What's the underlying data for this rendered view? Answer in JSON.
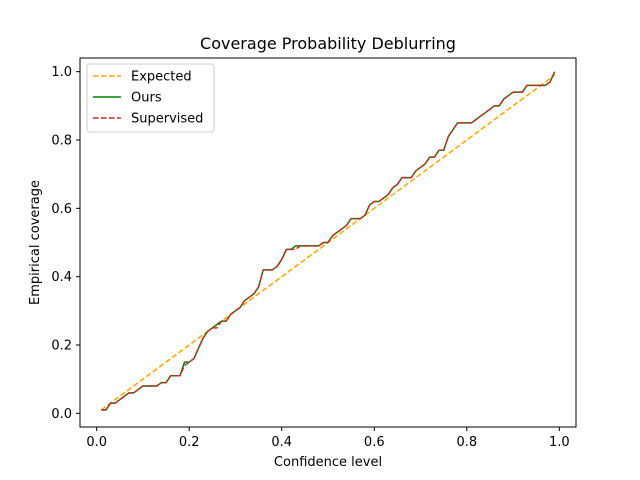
{
  "chart_data": {
    "type": "line",
    "title": "Coverage Probability Deblurring",
    "xlabel": "Confidence level",
    "ylabel": "Empirical coverage",
    "xlim": [
      -0.036,
      1.036
    ],
    "ylim": [
      -0.04,
      1.04
    ],
    "xticks": [
      "0.0",
      "0.2",
      "0.4",
      "0.6",
      "0.8",
      "1.0"
    ],
    "yticks": [
      "0.0",
      "0.2",
      "0.4",
      "0.6",
      "0.8",
      "1.0"
    ],
    "grid": false,
    "legend_position": "top-left",
    "series": [
      {
        "name": "Expected",
        "style": "dashed",
        "color": "#ffa500",
        "x": [
          0.01,
          0.99
        ],
        "y": [
          0.01,
          0.99
        ]
      },
      {
        "name": "Ours",
        "style": "solid",
        "color": "#008000",
        "x": [
          0.01,
          0.02,
          0.03,
          0.04,
          0.05,
          0.06,
          0.07,
          0.08,
          0.09,
          0.1,
          0.11,
          0.12,
          0.13,
          0.14,
          0.15,
          0.16,
          0.17,
          0.18,
          0.19,
          0.2,
          0.21,
          0.22,
          0.23,
          0.24,
          0.25,
          0.26,
          0.27,
          0.28,
          0.29,
          0.3,
          0.31,
          0.32,
          0.33,
          0.34,
          0.35,
          0.36,
          0.37,
          0.38,
          0.39,
          0.4,
          0.41,
          0.42,
          0.43,
          0.44,
          0.45,
          0.46,
          0.47,
          0.48,
          0.49,
          0.5,
          0.51,
          0.52,
          0.53,
          0.54,
          0.55,
          0.56,
          0.57,
          0.58,
          0.59,
          0.6,
          0.61,
          0.62,
          0.63,
          0.64,
          0.65,
          0.66,
          0.67,
          0.68,
          0.69,
          0.7,
          0.71,
          0.72,
          0.73,
          0.74,
          0.75,
          0.76,
          0.77,
          0.78,
          0.79,
          0.8,
          0.81,
          0.82,
          0.83,
          0.84,
          0.85,
          0.86,
          0.87,
          0.88,
          0.89,
          0.9,
          0.91,
          0.92,
          0.93,
          0.94,
          0.95,
          0.96,
          0.97,
          0.98,
          0.99
        ],
        "y": [
          0.01,
          0.01,
          0.03,
          0.03,
          0.04,
          0.05,
          0.06,
          0.06,
          0.07,
          0.08,
          0.08,
          0.08,
          0.08,
          0.09,
          0.09,
          0.11,
          0.11,
          0.11,
          0.15,
          0.15,
          0.16,
          0.19,
          0.22,
          0.24,
          0.25,
          0.26,
          0.27,
          0.27,
          0.29,
          0.3,
          0.31,
          0.33,
          0.34,
          0.35,
          0.37,
          0.42,
          0.42,
          0.42,
          0.43,
          0.45,
          0.48,
          0.48,
          0.49,
          0.49,
          0.49,
          0.49,
          0.49,
          0.49,
          0.5,
          0.5,
          0.52,
          0.53,
          0.54,
          0.55,
          0.57,
          0.57,
          0.57,
          0.58,
          0.61,
          0.62,
          0.62,
          0.63,
          0.64,
          0.66,
          0.67,
          0.69,
          0.69,
          0.69,
          0.71,
          0.72,
          0.73,
          0.75,
          0.75,
          0.77,
          0.77,
          0.81,
          0.83,
          0.85,
          0.85,
          0.85,
          0.85,
          0.86,
          0.87,
          0.88,
          0.89,
          0.9,
          0.9,
          0.92,
          0.93,
          0.94,
          0.94,
          0.94,
          0.96,
          0.96,
          0.96,
          0.96,
          0.96,
          0.97,
          1.0
        ]
      },
      {
        "name": "Supervised",
        "style": "dashed",
        "color": "#d62728",
        "x": [
          0.01,
          0.02,
          0.03,
          0.04,
          0.05,
          0.06,
          0.07,
          0.08,
          0.09,
          0.1,
          0.11,
          0.12,
          0.13,
          0.14,
          0.15,
          0.16,
          0.17,
          0.18,
          0.19,
          0.2,
          0.21,
          0.22,
          0.23,
          0.24,
          0.25,
          0.26,
          0.27,
          0.28,
          0.29,
          0.3,
          0.31,
          0.32,
          0.33,
          0.34,
          0.35,
          0.36,
          0.37,
          0.38,
          0.39,
          0.4,
          0.41,
          0.42,
          0.43,
          0.44,
          0.45,
          0.46,
          0.47,
          0.48,
          0.49,
          0.5,
          0.51,
          0.52,
          0.53,
          0.54,
          0.55,
          0.56,
          0.57,
          0.58,
          0.59,
          0.6,
          0.61,
          0.62,
          0.63,
          0.64,
          0.65,
          0.66,
          0.67,
          0.68,
          0.69,
          0.7,
          0.71,
          0.72,
          0.73,
          0.74,
          0.75,
          0.76,
          0.77,
          0.78,
          0.79,
          0.8,
          0.81,
          0.82,
          0.83,
          0.84,
          0.85,
          0.86,
          0.87,
          0.88,
          0.89,
          0.9,
          0.91,
          0.92,
          0.93,
          0.94,
          0.95,
          0.96,
          0.97,
          0.98,
          0.99
        ],
        "y": [
          0.01,
          0.01,
          0.03,
          0.03,
          0.04,
          0.05,
          0.06,
          0.06,
          0.07,
          0.08,
          0.08,
          0.08,
          0.08,
          0.09,
          0.09,
          0.11,
          0.11,
          0.11,
          0.14,
          0.15,
          0.16,
          0.19,
          0.22,
          0.24,
          0.25,
          0.25,
          0.27,
          0.27,
          0.29,
          0.3,
          0.31,
          0.33,
          0.34,
          0.35,
          0.37,
          0.42,
          0.42,
          0.42,
          0.43,
          0.45,
          0.48,
          0.48,
          0.48,
          0.49,
          0.49,
          0.49,
          0.49,
          0.49,
          0.5,
          0.5,
          0.52,
          0.53,
          0.54,
          0.55,
          0.57,
          0.57,
          0.57,
          0.58,
          0.61,
          0.62,
          0.62,
          0.63,
          0.64,
          0.66,
          0.67,
          0.69,
          0.69,
          0.69,
          0.71,
          0.72,
          0.73,
          0.75,
          0.75,
          0.77,
          0.77,
          0.81,
          0.83,
          0.85,
          0.85,
          0.85,
          0.85,
          0.86,
          0.87,
          0.88,
          0.89,
          0.9,
          0.9,
          0.92,
          0.93,
          0.94,
          0.94,
          0.94,
          0.96,
          0.96,
          0.96,
          0.96,
          0.96,
          0.97,
          1.0
        ]
      }
    ]
  }
}
